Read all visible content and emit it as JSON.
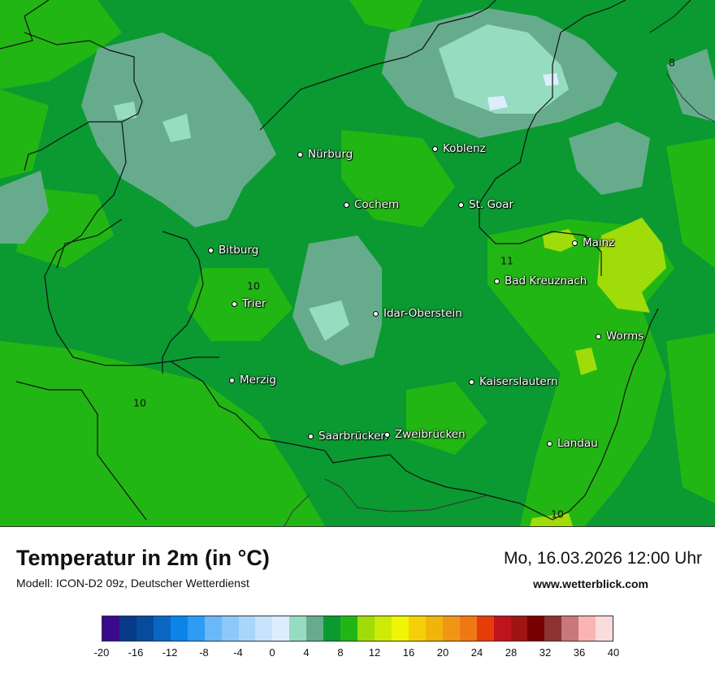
{
  "header": {
    "title": "Temperatur in 2m (in °C)",
    "model": "Modell: ICON-D2 09z, Deutscher Wetterdienst",
    "datetime": "Mo, 16.03.2026 12:00 Uhr",
    "site": "www.wetterblick.com"
  },
  "cities": [
    {
      "name": "Nürburg"
    },
    {
      "name": "Koblenz"
    },
    {
      "name": "Cochem"
    },
    {
      "name": "St. Goar"
    },
    {
      "name": "Mainz"
    },
    {
      "name": "Bitburg"
    },
    {
      "name": "Bad Kreuznach"
    },
    {
      "name": "Trier"
    },
    {
      "name": "Idar-Oberstein"
    },
    {
      "name": "Worms"
    },
    {
      "name": "Merzig"
    },
    {
      "name": "Kaiserslautern"
    },
    {
      "name": "Saarbrücken"
    },
    {
      "name": "Zweibrücken"
    },
    {
      "name": "Landau"
    }
  ],
  "isolines": [
    "8",
    "11",
    "10",
    "10",
    "10"
  ],
  "colorbar": {
    "colors": [
      "#3a0a8c",
      "#083a8a",
      "#074b9c",
      "#0a66c2",
      "#0b84e8",
      "#2e9bf5",
      "#6ab8f8",
      "#8cc8fa",
      "#a8d6fb",
      "#c8e4fc",
      "#dcedfd",
      "#96dcc0",
      "#66ac8c",
      "#0b9932",
      "#22b614",
      "#a0dc0a",
      "#cceb08",
      "#f0f508",
      "#f5d008",
      "#f0b40a",
      "#f09614",
      "#f07814",
      "#e63c0a",
      "#be141e",
      "#a01414",
      "#780000",
      "#8c3232",
      "#c8787a",
      "#fab4b4",
      "#fadcdc"
    ],
    "ticks": [
      "-20",
      "-16",
      "-12",
      "-8",
      "-4",
      "0",
      "4",
      "8",
      "12",
      "16",
      "20",
      "24",
      "28",
      "32",
      "36",
      "40"
    ]
  }
}
